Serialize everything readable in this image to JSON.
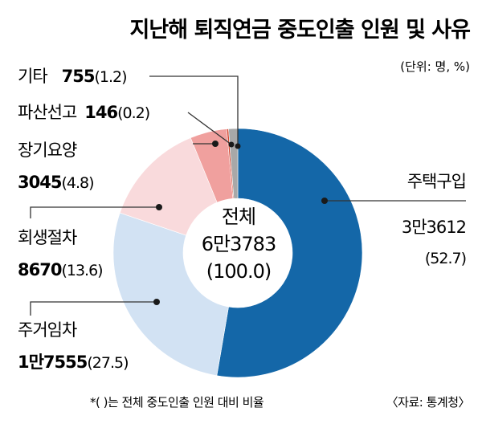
{
  "chart_data": {
    "type": "pie",
    "title": "지난해 퇴직연금 중도인출 인원 및 사유",
    "unit": "(단위: 명, %)",
    "total": {
      "label": "전체",
      "value": "6만3783",
      "percent": "(100.0)"
    },
    "series": [
      {
        "name": "주택구입",
        "value_text": "3만3612",
        "value": 33612,
        "percent": 52.7,
        "percent_text": "(52.7)",
        "color": "#1467a8"
      },
      {
        "name": "주거임차",
        "value_text": "1만7555",
        "value": 17555,
        "percent": 27.5,
        "percent_text": "(27.5)",
        "color": "#d2e2f3"
      },
      {
        "name": "회생절차",
        "value_text": "8670",
        "value": 8670,
        "percent": 13.6,
        "percent_text": "(13.6)",
        "color": "#f9dadc"
      },
      {
        "name": "장기요양",
        "value_text": "3045",
        "value": 3045,
        "percent": 4.8,
        "percent_text": "(4.8)",
        "color": "#f0a09e"
      },
      {
        "name": "파산선고",
        "value_text": "146",
        "value": 146,
        "percent": 0.2,
        "percent_text": "(0.2)",
        "color": "#d2452f"
      },
      {
        "name": "기타",
        "value_text": "755",
        "value": 755,
        "percent": 1.2,
        "percent_text": "(1.2)",
        "color": "#a8a8a8"
      }
    ],
    "footnote": "*( )는 전체 중도인출 인원 대비 비율",
    "source": "〈자료: 통계청〉"
  }
}
